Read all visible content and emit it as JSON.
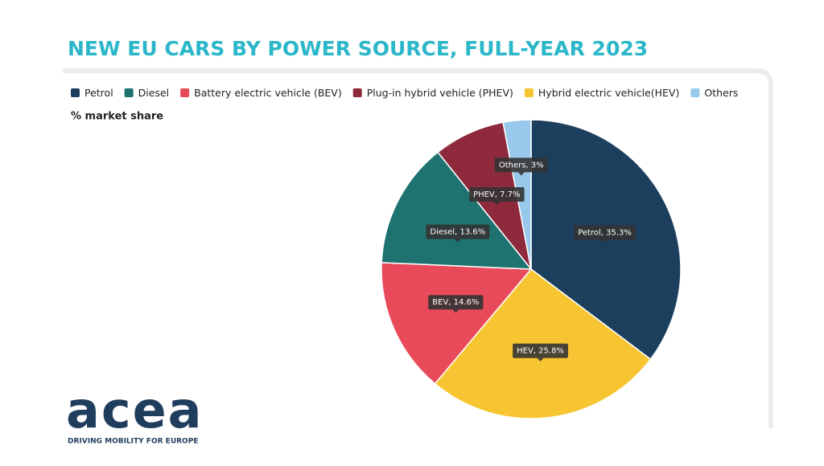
{
  "chart_data": {
    "type": "pie",
    "title": "NEW EU CARS BY POWER SOURCE, FULL-YEAR 2023",
    "subtitle": "% market share",
    "legend": [
      {
        "name": "Petrol",
        "color": "#1d3f5e"
      },
      {
        "name": "Diesel",
        "color": "#1e7370"
      },
      {
        "name": "Battery electric vehicle (BEV)",
        "color": "#e94a5a"
      },
      {
        "name": "Plug-in hybrid vehicle (PHEV)",
        "color": "#8e2a3c"
      },
      {
        "name": "Hybrid electric vehicle(HEV)",
        "color": "#f7c531"
      },
      {
        "name": "Others",
        "color": "#98c8ec"
      }
    ],
    "values": [
      35.3,
      25.8,
      14.6,
      13.6,
      7.7,
      3
    ],
    "value_labels": [
      "Petrol, 35.3%",
      "HEV, 25.8%",
      "BEV, 14.6%",
      "Diesel, 13.6%",
      "PHEV, 7.7%",
      "Others, 3%"
    ],
    "colors": [
      "#1d3f5e",
      "#f7c531",
      "#e94a5a",
      "#1e7370",
      "#8e2a3c",
      "#98c8ec"
    ]
  },
  "logo": {
    "name": "acea",
    "tagline": "DRIVING MOBILITY FOR EUROPE"
  }
}
